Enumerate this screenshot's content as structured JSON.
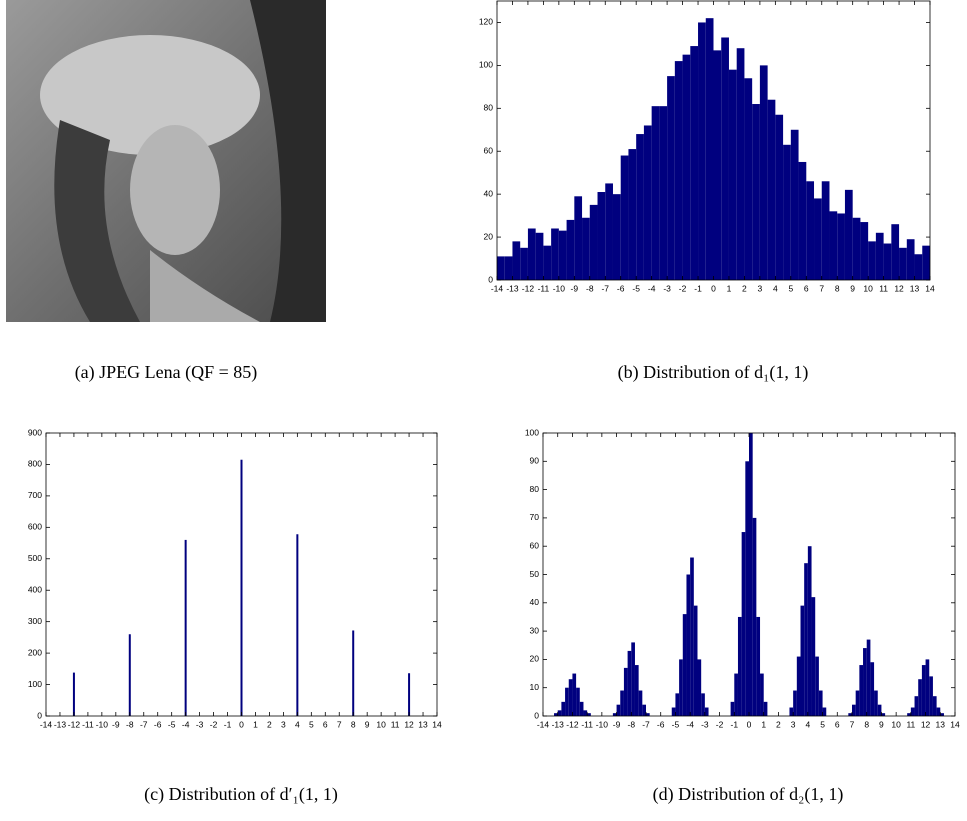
{
  "image_panel": {
    "caption": "(a) JPEG Lena (QF = 85)"
  },
  "chart_data": [
    {
      "type": "histogram",
      "caption": "(b) Distribution of d₁(1, 1)",
      "color": "#00007f",
      "bins": [
        -14,
        -13.5,
        -13,
        -12.5,
        -12,
        -11.5,
        -11,
        -10.5,
        -10,
        -9.5,
        -9,
        -8.5,
        -8,
        -7.5,
        -7,
        -6.5,
        -6,
        -5.5,
        -5,
        -4.5,
        -4,
        -3.5,
        -3,
        -2.5,
        -2,
        -1.5,
        -1,
        -0.5,
        0,
        0.5,
        1,
        1.5,
        2,
        2.5,
        3,
        3.5,
        4,
        4.5,
        5,
        5.5,
        6,
        6.5,
        7,
        7.5,
        8,
        8.5,
        9,
        9.5,
        10,
        10.5,
        11,
        11.5,
        12,
        12.5,
        13,
        13.5,
        14
      ],
      "values": [
        11,
        11,
        18,
        15,
        24,
        22,
        16,
        24,
        23,
        28,
        39,
        29,
        35,
        41,
        45,
        40,
        58,
        61,
        68,
        72,
        81,
        81,
        95,
        102,
        105,
        109,
        120,
        122,
        107,
        113,
        98,
        108,
        94,
        82,
        100,
        84,
        77,
        63,
        70,
        55,
        46,
        38,
        46,
        32,
        31,
        42,
        29,
        27,
        18,
        22,
        17,
        26,
        15,
        19,
        12,
        16
      ],
      "xlim": [
        -14,
        14
      ],
      "xticks": [
        -14,
        -13,
        -12,
        -11,
        -10,
        -9,
        -8,
        -7,
        -6,
        -5,
        -4,
        -3,
        -2,
        -1,
        0,
        1,
        2,
        3,
        4,
        5,
        6,
        7,
        8,
        9,
        10,
        11,
        12,
        13,
        14
      ],
      "ylim": [
        0,
        130
      ],
      "yticks": [
        0,
        20,
        40,
        60,
        80,
        100,
        120
      ]
    },
    {
      "type": "stem",
      "caption": "(c) Distribution of d′₁(1, 1)",
      "color": "#00007f",
      "x": [
        -12,
        -8,
        -4,
        0,
        4,
        8,
        12
      ],
      "values": [
        138,
        260,
        560,
        815,
        578,
        272,
        136
      ],
      "xlim": [
        -14,
        14
      ],
      "xticks": [
        -14,
        -13,
        -12,
        -11,
        -10,
        -9,
        -8,
        -7,
        -6,
        -5,
        -4,
        -3,
        -2,
        -1,
        0,
        1,
        2,
        3,
        4,
        5,
        6,
        7,
        8,
        9,
        10,
        11,
        12,
        13,
        14
      ],
      "ylim": [
        0,
        900
      ],
      "yticks": [
        0,
        100,
        200,
        300,
        400,
        500,
        600,
        700,
        800,
        900
      ]
    },
    {
      "type": "histogram",
      "caption": "(d) Distribution of d₂(1, 1)",
      "color": "#00007f",
      "bins": [
        -14,
        -13.75,
        -13.5,
        -13.25,
        -13,
        -12.75,
        -12.5,
        -12.25,
        -12,
        -11.75,
        -11.5,
        -11.25,
        -11,
        -10.75,
        -10.5,
        -10.25,
        -10,
        -9.75,
        -9.5,
        -9.25,
        -9,
        -8.75,
        -8.5,
        -8.25,
        -8,
        -7.75,
        -7.5,
        -7.25,
        -7,
        -6.75,
        -6.5,
        -6.25,
        -6,
        -5.75,
        -5.5,
        -5.25,
        -5,
        -4.75,
        -4.5,
        -4.25,
        -4,
        -3.75,
        -3.5,
        -3.25,
        -3,
        -2.75,
        -2.5,
        -2.25,
        -2,
        -1.75,
        -1.5,
        -1.25,
        -1,
        -0.75,
        -0.5,
        -0.25,
        0,
        0.25,
        0.5,
        0.75,
        1,
        1.25,
        1.5,
        1.75,
        2,
        2.25,
        2.5,
        2.75,
        3,
        3.25,
        3.5,
        3.75,
        4,
        4.25,
        4.5,
        4.75,
        5,
        5.25,
        5.5,
        5.75,
        6,
        6.25,
        6.5,
        6.75,
        7,
        7.25,
        7.5,
        7.75,
        8,
        8.25,
        8.5,
        8.75,
        9,
        9.25,
        9.5,
        9.75,
        10,
        10.25,
        10.5,
        10.75,
        11,
        11.25,
        11.5,
        11.75,
        12,
        12.25,
        12.5,
        12.75,
        13,
        13.25,
        13.5,
        13.75,
        14
      ],
      "values": [
        0,
        0,
        0,
        1,
        2,
        5,
        10,
        13,
        15,
        10,
        5,
        2,
        1,
        0,
        0,
        0,
        0,
        0,
        0,
        1,
        4,
        9,
        17,
        23,
        26,
        18,
        9,
        4,
        1,
        0,
        0,
        0,
        0,
        0,
        0,
        3,
        8,
        20,
        36,
        50,
        56,
        39,
        20,
        8,
        3,
        0,
        0,
        0,
        0,
        0,
        0,
        5,
        15,
        35,
        65,
        90,
        100,
        70,
        35,
        15,
        5,
        0,
        0,
        0,
        0,
        0,
        0,
        3,
        9,
        21,
        39,
        54,
        60,
        42,
        21,
        9,
        3,
        0,
        0,
        0,
        0,
        0,
        0,
        1,
        4,
        9,
        18,
        24,
        27,
        19,
        9,
        4,
        1,
        0,
        0,
        0,
        0,
        0,
        0,
        1,
        3,
        7,
        13,
        18,
        20,
        14,
        7,
        3,
        1,
        0,
        0,
        0
      ],
      "xlim": [
        -14,
        14
      ],
      "xticks": [
        -14,
        -13,
        -12,
        -11,
        -10,
        -9,
        -8,
        -7,
        -6,
        -5,
        -4,
        -3,
        -2,
        -1,
        0,
        1,
        2,
        3,
        4,
        5,
        6,
        7,
        8,
        9,
        10,
        11,
        12,
        13,
        14
      ],
      "ylim": [
        0,
        100
      ],
      "yticks": [
        0,
        10,
        20,
        30,
        40,
        50,
        60,
        70,
        80,
        90,
        100
      ]
    }
  ]
}
